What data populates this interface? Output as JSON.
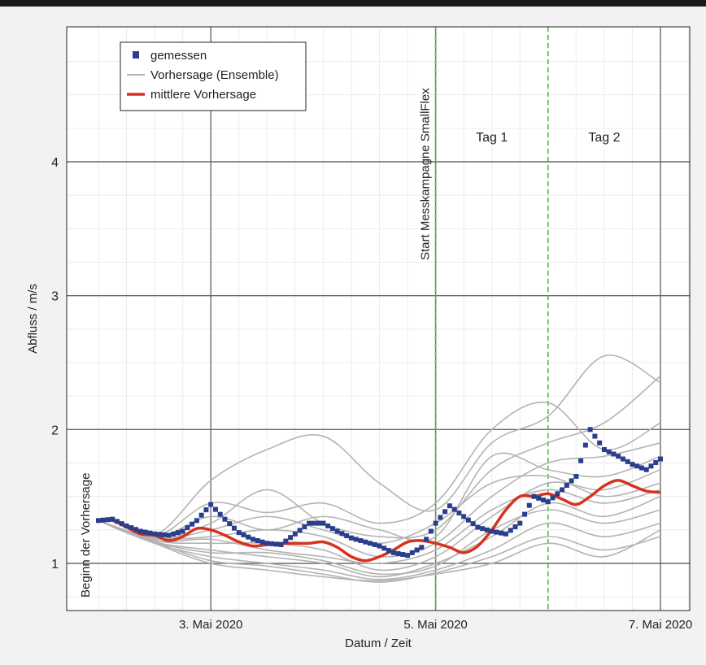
{
  "chart_data": {
    "type": "line",
    "xlabel": "Datum / Zeit",
    "ylabel": "Abfluss / m/s",
    "x_unit": "days",
    "xlim": [
      "2020-05-02 00:00",
      "2020-05-07 01:00"
    ],
    "ylim": [
      0.65,
      4.98
    ],
    "y_ticks": [
      1,
      2,
      3,
      4
    ],
    "x_ticks": [
      {
        "x": "2020-05-03 00:00",
        "label": "3. Mai 2020"
      },
      {
        "x": "2020-05-05 00:00",
        "label": "5. Mai 2020"
      },
      {
        "x": "2020-05-07 00:00",
        "label": "7. Mai 2020"
      }
    ],
    "grid": true,
    "legend_position": "top-left",
    "legend": [
      {
        "key": "measured",
        "label": "gemessen"
      },
      {
        "key": "ensemble",
        "label": "Vorhersage (Ensemble)"
      },
      {
        "key": "mean",
        "label": "mittlere Vorhersage"
      }
    ],
    "colors": {
      "measured": "#2a3e8c",
      "ensemble": "#b3b3b3",
      "mean": "#d7321e",
      "marker_line": "#4cbb3c",
      "grid": "#6a6a6a"
    },
    "vertical_markers": [
      {
        "x": "2020-05-02 00:00",
        "label": "Beginn der Vorhersage",
        "style": "none"
      },
      {
        "x": "2020-05-05 00:00",
        "label": "Start Messkampagne SmallFlex",
        "style": "dashed-green"
      },
      {
        "x": "2020-05-06 00:00",
        "label": "",
        "style": "dashed-green"
      }
    ],
    "region_labels": [
      {
        "x": "2020-05-05 12:00",
        "label": "Tag 1"
      },
      {
        "x": "2020-05-06 12:00",
        "label": "Tag 2"
      }
    ],
    "series": [
      {
        "key": "measured",
        "x": [
          "2020-05-02 00:00",
          "2020-05-02 03:00",
          "2020-05-02 06:00",
          "2020-05-02 09:00",
          "2020-05-02 12:00",
          "2020-05-02 15:00",
          "2020-05-02 18:00",
          "2020-05-02 21:00",
          "2020-05-03 00:00",
          "2020-05-03 03:00",
          "2020-05-03 06:00",
          "2020-05-03 09:00",
          "2020-05-03 12:00",
          "2020-05-03 15:00",
          "2020-05-03 18:00",
          "2020-05-03 21:00",
          "2020-05-04 00:00",
          "2020-05-04 03:00",
          "2020-05-04 06:00",
          "2020-05-04 09:00",
          "2020-05-04 12:00",
          "2020-05-04 15:00",
          "2020-05-04 18:00",
          "2020-05-04 21:00",
          "2020-05-05 00:00",
          "2020-05-05 03:00",
          "2020-05-05 06:00",
          "2020-05-05 09:00",
          "2020-05-05 12:00",
          "2020-05-05 15:00",
          "2020-05-05 18:00",
          "2020-05-05 21:00",
          "2020-05-06 00:00",
          "2020-05-06 03:00",
          "2020-05-06 06:00",
          "2020-05-06 09:00",
          "2020-05-06 12:00",
          "2020-05-06 15:00",
          "2020-05-06 18:00",
          "2020-05-06 21:00",
          "2020-05-07 00:00"
        ],
        "y": [
          1.32,
          1.33,
          1.28,
          1.24,
          1.22,
          1.21,
          1.24,
          1.32,
          1.44,
          1.33,
          1.23,
          1.18,
          1.15,
          1.14,
          1.22,
          1.3,
          1.3,
          1.24,
          1.19,
          1.16,
          1.13,
          1.08,
          1.06,
          1.12,
          1.3,
          1.43,
          1.35,
          1.27,
          1.24,
          1.22,
          1.3,
          1.5,
          1.46,
          1.55,
          1.65,
          2.0,
          1.85,
          1.8,
          1.74,
          1.7,
          1.78
        ]
      },
      {
        "key": "mean",
        "x": [
          "2020-05-02 00:00",
          "2020-05-02 03:00",
          "2020-05-02 06:00",
          "2020-05-02 09:00",
          "2020-05-02 12:00",
          "2020-05-02 15:00",
          "2020-05-02 18:00",
          "2020-05-02 21:00",
          "2020-05-03 00:00",
          "2020-05-03 03:00",
          "2020-05-03 06:00",
          "2020-05-03 09:00",
          "2020-05-03 12:00",
          "2020-05-03 15:00",
          "2020-05-03 18:00",
          "2020-05-03 21:00",
          "2020-05-04 00:00",
          "2020-05-04 03:00",
          "2020-05-04 06:00",
          "2020-05-04 09:00",
          "2020-05-04 12:00",
          "2020-05-04 15:00",
          "2020-05-04 18:00",
          "2020-05-04 21:00",
          "2020-05-05 00:00",
          "2020-05-05 03:00",
          "2020-05-05 06:00",
          "2020-05-05 09:00",
          "2020-05-05 12:00",
          "2020-05-05 15:00",
          "2020-05-05 18:00",
          "2020-05-05 21:00",
          "2020-05-06 00:00",
          "2020-05-06 03:00",
          "2020-05-06 06:00",
          "2020-05-06 09:00",
          "2020-05-06 12:00",
          "2020-05-06 15:00",
          "2020-05-06 18:00",
          "2020-05-06 21:00",
          "2020-05-07 00:00"
        ],
        "y": [
          1.32,
          1.32,
          1.27,
          1.22,
          1.21,
          1.17,
          1.2,
          1.26,
          1.25,
          1.21,
          1.16,
          1.13,
          1.14,
          1.15,
          1.15,
          1.15,
          1.16,
          1.12,
          1.05,
          1.02,
          1.05,
          1.1,
          1.16,
          1.17,
          1.15,
          1.12,
          1.08,
          1.13,
          1.25,
          1.4,
          1.5,
          1.5,
          1.52,
          1.48,
          1.44,
          1.5,
          1.58,
          1.62,
          1.58,
          1.54,
          1.53
        ]
      },
      {
        "key": "ensemble",
        "name": "",
        "x": [
          "2020-05-02 00:00",
          "2020-05-02 12:00",
          "2020-05-03 00:00",
          "2020-05-03 12:00",
          "2020-05-04 00:00",
          "2020-05-04 12:00",
          "2020-05-05 00:00",
          "2020-05-05 12:00",
          "2020-05-06 00:00",
          "2020-05-06 12:00",
          "2020-05-07 00:00"
        ],
        "y": [
          1.32,
          1.21,
          1.62,
          1.85,
          1.95,
          1.6,
          1.4,
          1.9,
          2.1,
          2.55,
          2.35
        ]
      },
      {
        "key": "ensemble",
        "name": "",
        "x": [
          "2020-05-02 00:00",
          "2020-05-02 12:00",
          "2020-05-03 00:00",
          "2020-05-03 12:00",
          "2020-05-04 00:00",
          "2020-05-04 12:00",
          "2020-05-05 00:00",
          "2020-05-05 12:00",
          "2020-05-06 00:00",
          "2020-05-06 12:00",
          "2020-05-07 00:00"
        ],
        "y": [
          1.32,
          1.2,
          1.45,
          1.38,
          1.45,
          1.3,
          1.45,
          2.0,
          2.2,
          1.85,
          2.05
        ]
      },
      {
        "key": "ensemble",
        "name": "",
        "x": [
          "2020-05-02 00:00",
          "2020-05-02 12:00",
          "2020-05-03 00:00",
          "2020-05-03 12:00",
          "2020-05-04 00:00",
          "2020-05-04 12:00",
          "2020-05-05 00:00",
          "2020-05-05 12:00",
          "2020-05-06 00:00",
          "2020-05-06 12:00",
          "2020-05-07 00:00"
        ],
        "y": [
          1.32,
          1.18,
          1.3,
          1.55,
          1.3,
          1.2,
          1.25,
          1.7,
          1.9,
          2.05,
          2.4
        ]
      },
      {
        "key": "ensemble",
        "name": "",
        "x": [
          "2020-05-02 00:00",
          "2020-05-02 12:00",
          "2020-05-03 00:00",
          "2020-05-03 12:00",
          "2020-05-04 00:00",
          "2020-05-04 12:00",
          "2020-05-05 00:00",
          "2020-05-05 12:00",
          "2020-05-06 00:00",
          "2020-05-06 12:00",
          "2020-05-07 00:00"
        ],
        "y": [
          1.32,
          1.19,
          1.2,
          1.25,
          1.2,
          1.05,
          1.15,
          1.5,
          1.75,
          1.8,
          1.9
        ]
      },
      {
        "key": "ensemble",
        "name": "",
        "x": [
          "2020-05-02 00:00",
          "2020-05-02 12:00",
          "2020-05-03 00:00",
          "2020-05-03 12:00",
          "2020-05-04 00:00",
          "2020-05-04 12:00",
          "2020-05-05 00:00",
          "2020-05-05 12:00",
          "2020-05-06 00:00",
          "2020-05-06 12:00",
          "2020-05-07 00:00"
        ],
        "y": [
          1.32,
          1.17,
          1.15,
          1.15,
          1.1,
          0.95,
          1.05,
          1.35,
          1.6,
          1.55,
          1.7
        ]
      },
      {
        "key": "ensemble",
        "name": "",
        "x": [
          "2020-05-02 00:00",
          "2020-05-02 12:00",
          "2020-05-03 00:00",
          "2020-05-03 12:00",
          "2020-05-04 00:00",
          "2020-05-04 12:00",
          "2020-05-05 00:00",
          "2020-05-05 12:00",
          "2020-05-06 00:00",
          "2020-05-06 12:00",
          "2020-05-07 00:00"
        ],
        "y": [
          1.32,
          1.16,
          1.1,
          1.05,
          1.0,
          0.9,
          1.0,
          1.2,
          1.45,
          1.35,
          1.5
        ]
      },
      {
        "key": "ensemble",
        "name": "",
        "x": [
          "2020-05-02 00:00",
          "2020-05-02 12:00",
          "2020-05-03 00:00",
          "2020-05-03 12:00",
          "2020-05-04 00:00",
          "2020-05-04 12:00",
          "2020-05-05 00:00",
          "2020-05-05 12:00",
          "2020-05-06 00:00",
          "2020-05-06 12:00",
          "2020-05-07 00:00"
        ],
        "y": [
          1.32,
          1.15,
          1.05,
          1.0,
          0.95,
          0.88,
          0.95,
          1.1,
          1.3,
          1.2,
          1.3
        ]
      },
      {
        "key": "ensemble",
        "name": "",
        "x": [
          "2020-05-02 00:00",
          "2020-05-02 12:00",
          "2020-05-03 00:00",
          "2020-05-03 12:00",
          "2020-05-04 00:00",
          "2020-05-04 12:00",
          "2020-05-05 00:00",
          "2020-05-05 12:00",
          "2020-05-06 00:00",
          "2020-05-06 12:00",
          "2020-05-07 00:00"
        ],
        "y": [
          1.32,
          1.16,
          1.02,
          0.98,
          0.92,
          0.86,
          0.93,
          1.05,
          1.2,
          1.1,
          1.2
        ]
      },
      {
        "key": "ensemble",
        "name": "",
        "x": [
          "2020-05-02 00:00",
          "2020-05-02 12:00",
          "2020-05-03 00:00",
          "2020-05-03 12:00",
          "2020-05-04 00:00",
          "2020-05-04 12:00",
          "2020-05-05 00:00",
          "2020-05-05 12:00",
          "2020-05-06 00:00",
          "2020-05-06 12:00",
          "2020-05-07 00:00"
        ],
        "y": [
          1.32,
          1.18,
          1.25,
          1.35,
          1.25,
          1.15,
          1.3,
          1.6,
          1.65,
          1.5,
          1.6
        ]
      },
      {
        "key": "ensemble",
        "name": "",
        "x": [
          "2020-05-02 00:00",
          "2020-05-02 12:00",
          "2020-05-03 00:00",
          "2020-05-03 12:00",
          "2020-05-04 00:00",
          "2020-05-04 12:00",
          "2020-05-05 00:00",
          "2020-05-05 12:00",
          "2020-05-06 00:00",
          "2020-05-06 12:00",
          "2020-05-07 00:00"
        ],
        "y": [
          1.32,
          1.17,
          1.18,
          1.1,
          1.05,
          1.0,
          1.1,
          1.4,
          1.55,
          1.45,
          1.55
        ]
      },
      {
        "key": "ensemble",
        "name": "",
        "x": [
          "2020-05-02 00:00",
          "2020-05-02 12:00",
          "2020-05-03 00:00",
          "2020-05-03 12:00",
          "2020-05-04 00:00",
          "2020-05-04 12:00",
          "2020-05-05 00:00",
          "2020-05-05 12:00",
          "2020-05-06 00:00",
          "2020-05-06 12:00",
          "2020-05-07 00:00"
        ],
        "y": [
          1.32,
          1.16,
          1.08,
          1.08,
          1.02,
          0.92,
          0.98,
          1.25,
          1.4,
          1.3,
          1.4
        ]
      },
      {
        "key": "ensemble",
        "name": "",
        "x": [
          "2020-05-02 00:00",
          "2020-05-02 12:00",
          "2020-05-03 00:00",
          "2020-05-03 12:00",
          "2020-05-04 00:00",
          "2020-05-04 12:00",
          "2020-05-05 00:00",
          "2020-05-05 12:00",
          "2020-05-06 00:00",
          "2020-05-06 12:00",
          "2020-05-07 00:00"
        ],
        "y": [
          1.32,
          1.15,
          1.0,
          0.95,
          0.9,
          0.87,
          0.92,
          1.0,
          1.15,
          1.05,
          1.25
        ]
      },
      {
        "key": "ensemble",
        "name": "",
        "x": [
          "2020-05-02 00:00",
          "2020-05-02 12:00",
          "2020-05-03 00:00",
          "2020-05-03 12:00",
          "2020-05-04 00:00",
          "2020-05-04 12:00",
          "2020-05-05 00:00",
          "2020-05-05 12:00",
          "2020-05-06 00:00",
          "2020-05-06 12:00",
          "2020-05-07 00:00"
        ],
        "y": [
          1.32,
          1.19,
          1.35,
          1.25,
          1.35,
          1.25,
          1.2,
          1.8,
          1.7,
          1.65,
          1.8
        ]
      }
    ]
  }
}
